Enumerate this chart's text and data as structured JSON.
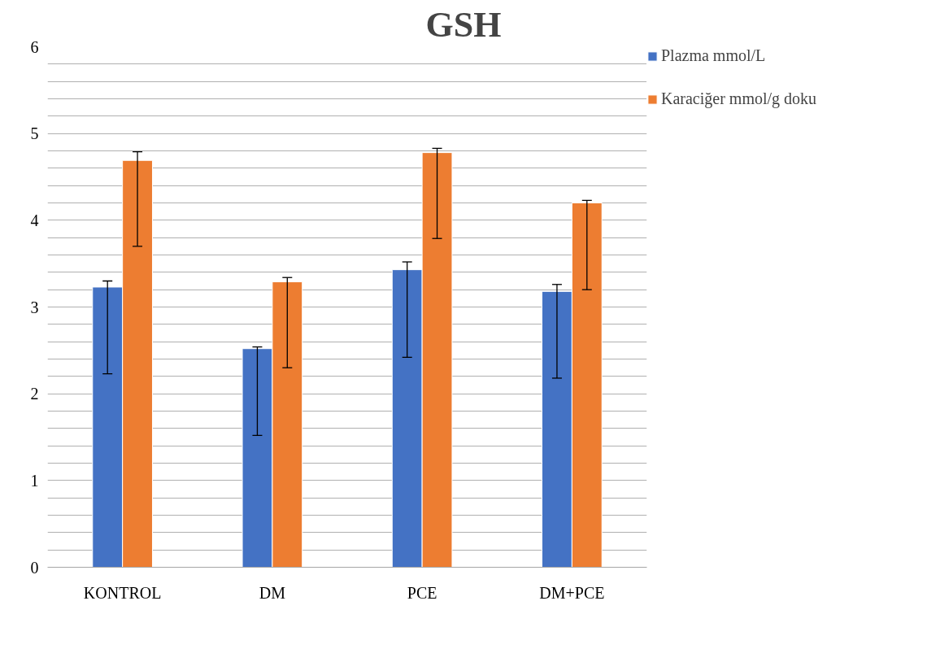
{
  "chart_data": {
    "type": "bar",
    "title": "GSH",
    "categories": [
      "KONTROL",
      "DM",
      "PCE",
      "DM+PCE"
    ],
    "series": [
      {
        "name": "Plazma mmol/L",
        "color": "#4472c4",
        "values": [
          3.23,
          2.52,
          3.43,
          3.18
        ],
        "errors": [
          [
            2.23,
            3.3
          ],
          [
            1.52,
            2.54
          ],
          [
            2.42,
            3.52
          ],
          [
            2.18,
            3.26
          ]
        ]
      },
      {
        "name": "Karaciğer mmol/g doku",
        "color": "#ed7d31",
        "values": [
          4.69,
          3.29,
          4.78,
          4.2
        ],
        "errors": [
          [
            3.7,
            4.79
          ],
          [
            2.3,
            3.34
          ],
          [
            3.79,
            4.83
          ],
          [
            3.2,
            4.23
          ]
        ]
      }
    ],
    "ylim": [
      0,
      6
    ],
    "yticks": [
      0,
      {
        "value": 0.2,
        "label": null
      },
      {
        "value": 0.4,
        "label": null
      },
      {
        "value": 0.6,
        "label": null
      },
      {
        "value": 0.8,
        "label": null
      },
      1,
      {
        "value": 1.2,
        "label": null
      },
      {
        "value": 1.4,
        "label": null
      },
      {
        "value": 1.6,
        "label": null
      },
      {
        "value": 1.8,
        "label": null
      },
      2,
      {
        "value": 2.2,
        "label": null
      },
      {
        "value": 2.4,
        "label": null
      },
      {
        "value": 2.6,
        "label": null
      },
      {
        "value": 2.8,
        "label": null
      },
      3,
      {
        "value": 3.2,
        "label": null
      },
      {
        "value": 3.4,
        "label": null
      },
      {
        "value": 3.6,
        "label": null
      },
      {
        "value": 3.8,
        "label": null
      },
      4,
      {
        "value": 4.2,
        "label": null
      },
      {
        "value": 4.4,
        "label": null
      },
      {
        "value": 4.6,
        "label": null
      },
      {
        "value": 4.8,
        "label": null
      },
      5,
      {
        "value": 5.2,
        "label": null
      },
      {
        "value": 5.4,
        "label": null
      },
      {
        "value": 5.6,
        "label": null
      },
      {
        "value": 5.8,
        "label": null
      },
      6
    ],
    "grid": "y",
    "legend": "top right"
  }
}
